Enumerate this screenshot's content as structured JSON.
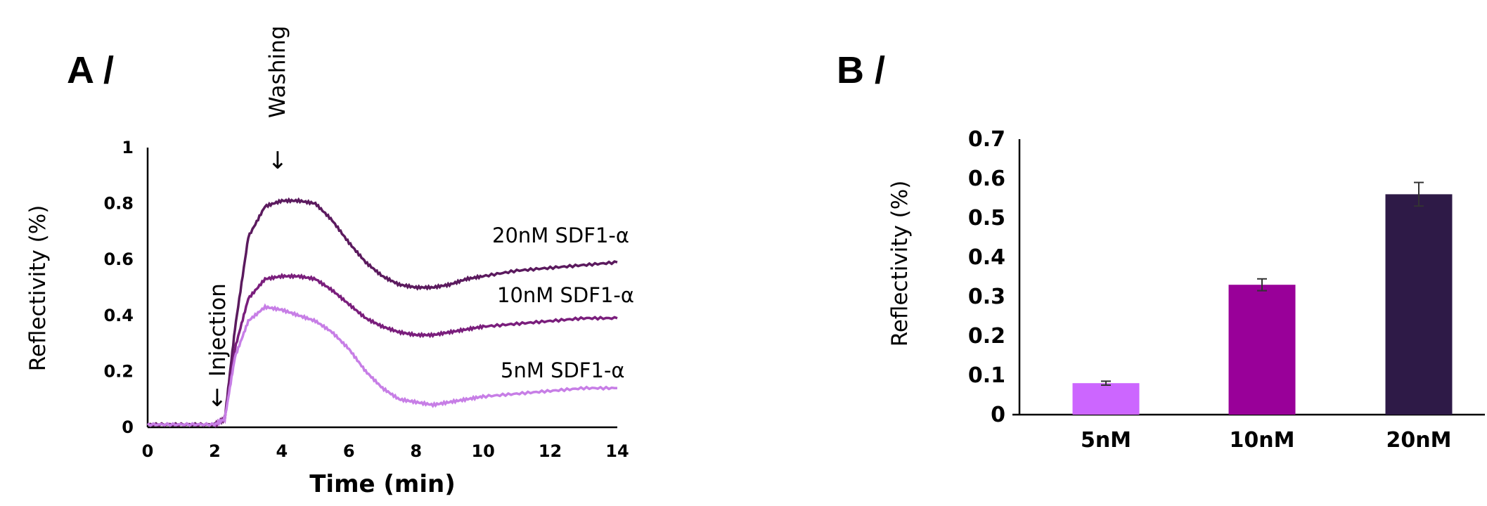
{
  "panels": {
    "a_label": "A /",
    "b_label": "B /"
  },
  "chart_data": [
    {
      "type": "line",
      "xlabel": "Time (min)",
      "ylabel": "Reflectivity (%)",
      "xlim": [
        0,
        14
      ],
      "ylim": [
        0,
        1
      ],
      "xticks": [
        "0",
        "2",
        "4",
        "6",
        "8",
        "10",
        "12",
        "14"
      ],
      "yticks": [
        "0",
        "0.2",
        "0.4",
        "0.6",
        "0.8",
        "1"
      ],
      "annotations": [
        {
          "text": "Injection",
          "x": 2
        },
        {
          "text": "Washing",
          "x": 3.7
        }
      ],
      "series": [
        {
          "name": "20nM SDF1-α",
          "color": "#5b1a5e",
          "x": [
            0,
            1,
            2,
            2.3,
            2.6,
            3.0,
            3.5,
            4.0,
            4.5,
            5.0,
            5.5,
            6.0,
            6.5,
            7.0,
            7.5,
            8.0,
            8.5,
            9.0,
            9.5,
            10,
            11,
            12,
            13,
            14
          ],
          "y": [
            0.01,
            0.01,
            0.01,
            0.03,
            0.35,
            0.68,
            0.79,
            0.81,
            0.81,
            0.8,
            0.74,
            0.66,
            0.59,
            0.54,
            0.51,
            0.5,
            0.5,
            0.51,
            0.53,
            0.54,
            0.56,
            0.57,
            0.58,
            0.59
          ]
        },
        {
          "name": "10nM SDF1-α",
          "color": "#7a1e7c",
          "x": [
            0,
            1,
            2,
            2.3,
            2.6,
            3.0,
            3.5,
            4.0,
            4.5,
            5.0,
            5.5,
            6.0,
            6.5,
            7.0,
            7.5,
            8.0,
            8.5,
            9.0,
            9.5,
            10,
            11,
            12,
            13,
            14
          ],
          "y": [
            0.01,
            0.01,
            0.01,
            0.03,
            0.28,
            0.46,
            0.53,
            0.54,
            0.54,
            0.53,
            0.49,
            0.44,
            0.39,
            0.36,
            0.34,
            0.33,
            0.33,
            0.34,
            0.35,
            0.36,
            0.37,
            0.38,
            0.39,
            0.39
          ]
        },
        {
          "name": "5nM SDF1-α",
          "color": "#c77ee6",
          "x": [
            0,
            1,
            2,
            2.3,
            2.6,
            3.0,
            3.5,
            4.0,
            4.5,
            5.0,
            5.5,
            6.0,
            6.5,
            7.0,
            7.5,
            8.0,
            8.5,
            9.0,
            9.5,
            10,
            11,
            12,
            13,
            14
          ],
          "y": [
            0.01,
            0.01,
            0.01,
            0.03,
            0.25,
            0.38,
            0.43,
            0.42,
            0.4,
            0.38,
            0.34,
            0.28,
            0.2,
            0.14,
            0.1,
            0.09,
            0.08,
            0.09,
            0.1,
            0.11,
            0.12,
            0.13,
            0.14,
            0.14
          ]
        }
      ]
    },
    {
      "type": "bar",
      "ylabel": "Reflectivity (%)",
      "ylim": [
        0,
        0.7
      ],
      "yticks": [
        "0",
        "0.1",
        "0.2",
        "0.3",
        "0.4",
        "0.5",
        "0.6",
        "0.7"
      ],
      "categories": [
        "5nM",
        "10nM",
        "20nM"
      ],
      "values": [
        0.08,
        0.33,
        0.56
      ],
      "errors": [
        0.005,
        0.015,
        0.03
      ],
      "colors": [
        "#cc66ff",
        "#990099",
        "#2e1a47"
      ]
    }
  ]
}
